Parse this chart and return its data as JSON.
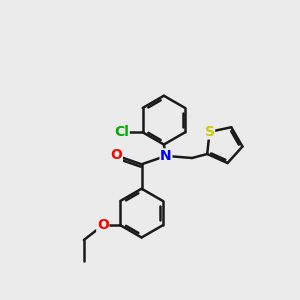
{
  "background_color": "#ebebeb",
  "atom_colors": {
    "N": "#0000ff",
    "O": "#ff0000",
    "S": "#cccc00",
    "Cl": "#00aa00"
  },
  "bond_color": "#1a1a1a",
  "bond_width": 1.8,
  "font_size": 10
}
